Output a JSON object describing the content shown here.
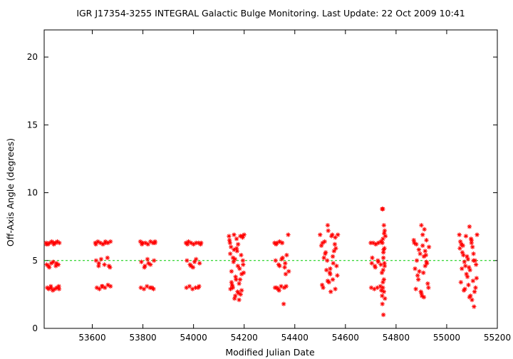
{
  "chart_data": {
    "type": "scatter",
    "title": "IGR J17354-3255   INTEGRAL Galactic Bulge Monitoring.  Last Update: 22 Oct 2009 10:41",
    "xlabel": "Modified Julian Date",
    "ylabel": "Off-Axis Angle (degrees)",
    "xlim": [
      53410,
      55200
    ],
    "ylim": [
      0,
      22
    ],
    "xticks": [
      "53600",
      "53800",
      "54000",
      "54200",
      "54400",
      "54600",
      "54800",
      "55000",
      "55200"
    ],
    "yticks": [
      "0",
      "5",
      "10",
      "15",
      "20"
    ],
    "grid": false,
    "marker": "asterisk",
    "colors": {
      "points": "#ff0000",
      "reference_line": "#00cc00",
      "axes": "#000000"
    },
    "reference_line": {
      "y": 5,
      "style": "dashed"
    },
    "series": [
      {
        "x": [
          53418,
          53425,
          53432,
          53440,
          53448,
          53455,
          53462,
          53470,
          53420,
          53430,
          53438,
          53446,
          53456,
          53466,
          53422,
          53428,
          53436,
          53444,
          53452,
          53460,
          53468,
          53419,
          53427,
          53437,
          53447,
          53458,
          53469,
          53612,
          53622,
          53632,
          53642,
          53652,
          53662,
          53672,
          53615,
          53625,
          53635,
          53648,
          53660,
          53670,
          53618,
          53628,
          53640,
          53650,
          53662,
          53672,
          53614,
          53626,
          53638,
          53652,
          53666,
          53790,
          53800,
          53810,
          53820,
          53830,
          53840,
          53848,
          53794,
          53806,
          53818,
          53830,
          53844,
          53792,
          53804,
          53816,
          53828,
          53842,
          53796,
          53808,
          53822,
          53836,
          53848,
          53970,
          53980,
          53990,
          54000,
          54010,
          54020,
          54028,
          53974,
          53986,
          53998,
          54010,
          54024,
          53972,
          53984,
          53996,
          54008,
          54022,
          53976,
          53990,
          54004,
          54018,
          54030,
          54140,
          54145,
          54150,
          54155,
          54160,
          54165,
          54170,
          54175,
          54180,
          54185,
          54190,
          54195,
          54200,
          54148,
          54158,
          54168,
          54178,
          54188,
          54198,
          54142,
          54152,
          54162,
          54172,
          54182,
          54192,
          54146,
          54156,
          54166,
          54176,
          54186,
          54196,
          54150,
          54160,
          54170,
          54180,
          54190,
          54144,
          54154,
          54164,
          54174,
          54184,
          54194,
          54320,
          54330,
          54340,
          54350,
          54324,
          54336,
          54348,
          54360,
          54322,
          54334,
          54346,
          54358,
          54326,
          54340,
          54352,
          54364,
          54328,
          54338,
          54350,
          54362,
          54374,
          54356,
          54368,
          54366,
          54376,
          54500,
          54510,
          54520,
          54530,
          54540,
          54550,
          54560,
          54570,
          54505,
          54515,
          54525,
          54535,
          54545,
          54555,
          54565,
          54508,
          54518,
          54528,
          54538,
          54548,
          54558,
          54568,
          54512,
          54522,
          54532,
          54542,
          54552,
          54562,
          54530,
          54540,
          54550,
          54560,
          54700,
          54710,
          54720,
          54730,
          54740,
          54704,
          54716,
          54728,
          54740,
          54702,
          54714,
          54726,
          54738,
          54706,
          54718,
          54730,
          54742,
          54745,
          54748,
          54752,
          54755,
          54758,
          54746,
          54750,
          54754,
          54744,
          54748,
          54752,
          54756,
          54746,
          54750,
          54754,
          54748,
          54752,
          54745,
          54755,
          54750,
          54748,
          54753,
          54751,
          54749,
          54870,
          54880,
          54890,
          54900,
          54910,
          54920,
          54930,
          54875,
          54885,
          54895,
          54905,
          54915,
          54925,
          54878,
          54888,
          54898,
          54908,
          54918,
          54928,
          54872,
          54882,
          54892,
          54902,
          54912,
          54922,
          54905,
          54910,
          54915,
          54900,
          54920,
          55050,
          55058,
          55066,
          55074,
          55082,
          55090,
          55098,
          55106,
          55114,
          55120,
          55054,
          55062,
          55070,
          55078,
          55086,
          55094,
          55102,
          55110,
          55118,
          55052,
          55060,
          55068,
          55076,
          55084,
          55092,
          55100,
          55108,
          55116,
          55056,
          55064,
          55072,
          55080,
          55088,
          55096,
          55104,
          55112,
          55090,
          55098,
          55106
        ],
        "y": [
          6.3,
          6.2,
          6.3,
          6.4,
          6.2,
          6.3,
          6.4,
          6.3,
          4.7,
          4.5,
          4.8,
          4.9,
          4.6,
          4.7,
          3.0,
          2.9,
          3.1,
          2.8,
          2.9,
          3.0,
          3.1,
          6.2,
          4.6,
          3.0,
          6.3,
          4.8,
          2.9,
          6.3,
          6.4,
          6.3,
          6.2,
          6.4,
          6.3,
          6.4,
          5.0,
          4.6,
          5.1,
          4.7,
          5.2,
          4.5,
          3.0,
          2.9,
          3.1,
          3.0,
          3.2,
          3.1,
          6.2,
          4.8,
          3.1,
          6.3,
          4.6,
          6.4,
          6.3,
          6.3,
          6.2,
          6.4,
          6.3,
          6.3,
          4.9,
          4.5,
          5.1,
          4.7,
          5.0,
          3.0,
          2.9,
          3.1,
          3.0,
          2.9,
          6.2,
          4.6,
          4.8,
          3.0,
          6.4,
          6.3,
          6.4,
          6.3,
          6.2,
          6.3,
          6.3,
          6.2,
          5.0,
          4.7,
          4.5,
          5.1,
          4.8,
          3.0,
          3.1,
          2.9,
          3.0,
          3.1,
          6.2,
          4.6,
          4.9,
          3.0,
          6.3,
          6.8,
          5.5,
          4.2,
          3.0,
          6.9,
          2.4,
          5.9,
          4.6,
          3.3,
          6.8,
          2.8,
          5.0,
          6.9,
          6.0,
          4.9,
          3.6,
          2.6,
          5.4,
          4.1,
          6.5,
          3.2,
          2.2,
          5.7,
          4.4,
          6.8,
          2.9,
          5.2,
          3.8,
          6.2,
          2.5,
          4.7,
          3.4,
          5.8,
          6.6,
          2.1,
          4.0,
          6.3,
          3.1,
          5.1,
          2.7,
          3.6,
          6.7,
          6.3,
          6.3,
          6.4,
          6.3,
          5.0,
          4.7,
          5.1,
          4.5,
          3.0,
          2.9,
          3.1,
          3.0,
          6.2,
          4.6,
          5.2,
          4.0,
          3.0,
          2.8,
          6.3,
          4.8,
          6.9,
          1.8,
          5.4,
          3.1,
          4.2,
          6.9,
          6.3,
          5.5,
          7.6,
          4.4,
          3.6,
          6.7,
          6.9,
          6.1,
          5.2,
          4.3,
          3.4,
          6.8,
          5.7,
          4.6,
          3.2,
          6.4,
          5.0,
          4.1,
          6.9,
          6.2,
          3.9,
          3.0,
          5.6,
          7.2,
          2.7,
          4.8,
          5.9,
          3.5,
          4.0,
          5.3,
          2.9,
          6.3,
          6.3,
          6.2,
          6.3,
          6.4,
          4.8,
          4.6,
          5.0,
          4.7,
          3.0,
          2.9,
          3.0,
          3.1,
          5.2,
          4.5,
          4.9,
          2.8,
          8.8,
          8.8,
          7.6,
          7.2,
          6.8,
          6.3,
          5.6,
          4.8,
          4.1,
          3.4,
          2.7,
          2.2,
          1.8,
          1.0,
          5.9,
          6.6,
          3.6,
          2.4,
          4.6,
          5.2,
          3.0,
          7.0,
          5.8,
          4.3,
          6.5,
          6.2,
          5.8,
          7.6,
          5.3,
          4.9,
          6.0,
          4.4,
          3.9,
          5.5,
          6.9,
          4.6,
          3.3,
          2.9,
          3.6,
          2.7,
          4.1,
          5.4,
          3.0,
          6.3,
          5.0,
          4.2,
          2.4,
          7.3,
          4.8,
          6.1,
          2.3,
          5.7,
          2.6,
          6.5,
          6.9,
          6.2,
          5.4,
          4.6,
          3.8,
          7.5,
          6.5,
          5.0,
          3.0,
          6.9,
          6.4,
          5.6,
          4.9,
          4.0,
          3.2,
          2.4,
          6.0,
          2.7,
          3.7,
          5.9,
          4.4,
          2.8,
          6.8,
          5.1,
          4.3,
          2.1,
          1.6,
          4.7,
          3.4,
          6.1,
          2.9,
          5.3,
          4.5,
          6.6,
          3.5,
          5.0,
          2.3,
          6.3,
          5.5
        ]
      }
    ]
  }
}
